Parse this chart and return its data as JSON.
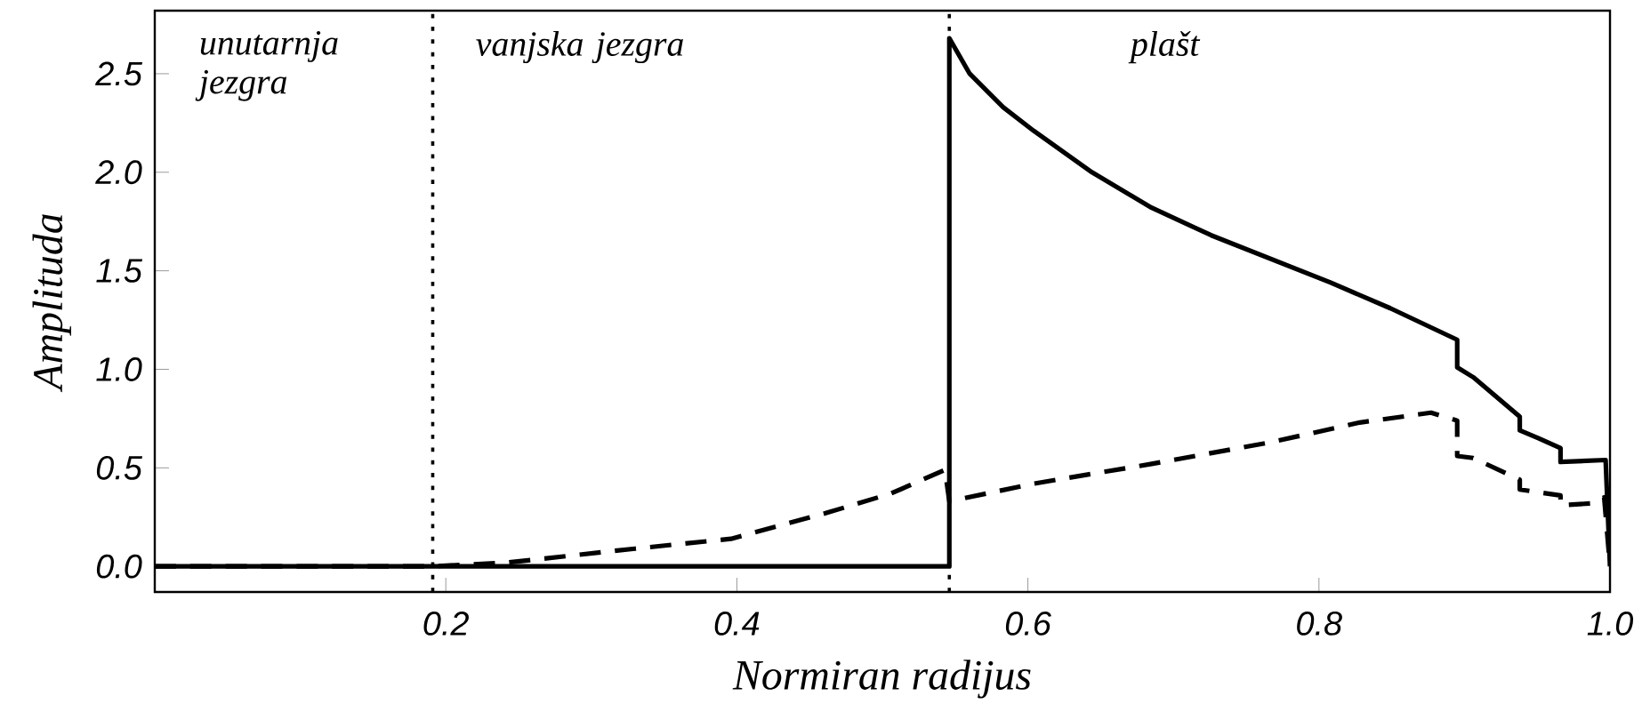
{
  "chart_data": {
    "type": "line",
    "xlabel": "Normiran radijus",
    "ylabel": "Amplituda",
    "xlim": [
      0,
      1.0
    ],
    "ylim": [
      -0.13,
      2.82
    ],
    "xticks": [
      0.2,
      0.4,
      0.6,
      0.8,
      {
        "value": 1,
        "label": "1.0"
      }
    ],
    "yticks": [
      {
        "value": 0,
        "label": "0.0"
      },
      0.5,
      {
        "value": 1,
        "label": "1.0"
      },
      1.5,
      {
        "value": 2,
        "label": "2.0"
      },
      2.5
    ],
    "series": [
      {
        "color": "#000000",
        "line_style": "solid",
        "x": [
          0,
          0.546,
          0.546,
          0.56,
          0.583,
          0.604,
          0.644,
          0.685,
          0.726,
          0.767,
          0.808,
          0.849,
          0.895,
          0.895,
          0.906,
          0.938,
          0.938,
          0.951,
          0.966,
          0.966,
          0.997,
          1.0
        ],
        "values": [
          0,
          0,
          2.68,
          2.5,
          2.33,
          2.21,
          2.0,
          1.82,
          1.68,
          1.56,
          1.44,
          1.31,
          1.15,
          1.01,
          0.96,
          0.76,
          0.69,
          0.65,
          0.6,
          0.53,
          0.54,
          0.0
        ]
      },
      {
        "color": "#000000",
        "line_style": "dashed",
        "x": [
          0,
          0.19,
          0.243,
          0.33,
          0.396,
          0.461,
          0.506,
          0.543,
          0.546,
          0.604,
          0.685,
          0.767,
          0.828,
          0.877,
          0.895,
          0.895,
          0.906,
          0.938,
          0.938,
          0.966,
          0.966,
          0.988,
          0.996,
          1.0
        ],
        "values": [
          0,
          0,
          0.02,
          0.09,
          0.14,
          0.27,
          0.37,
          0.49,
          0.33,
          0.42,
          0.52,
          0.63,
          0.73,
          0.78,
          0.74,
          0.56,
          0.55,
          0.44,
          0.39,
          0.36,
          0.31,
          0.32,
          0.35,
          0.0
        ]
      }
    ],
    "ref_lines": [
      {
        "axis": "x",
        "value": 0.191,
        "line_style": "dotted",
        "color": "#000000"
      },
      {
        "axis": "x",
        "value": 0.546,
        "line_style": "dotted",
        "color": "#000000"
      }
    ],
    "annotations": [
      "unutarnja jezgra",
      "vanjska jezgra",
      "plašt"
    ],
    "marker": "none"
  }
}
